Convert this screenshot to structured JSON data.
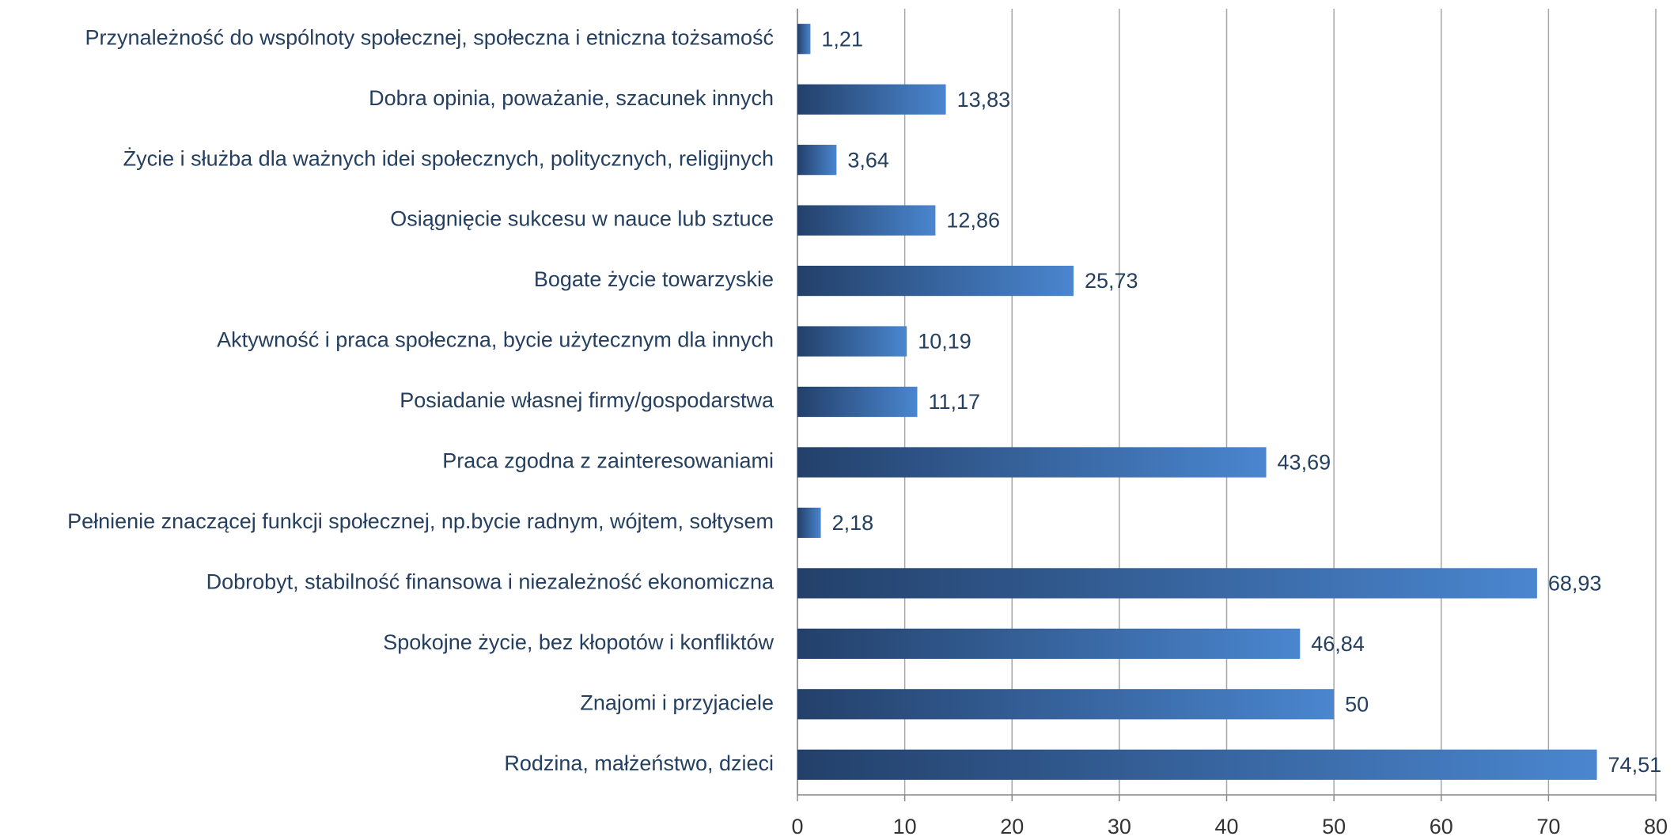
{
  "chart_data": {
    "type": "bar",
    "orientation": "horizontal",
    "categories": [
      "Przynależność do wspólnoty społecznej, społeczna i etniczna tożsamość",
      "Dobra opinia, poważanie, szacunek innych",
      "Życie i służba dla ważnych idei społecznych, politycznych, religijnych",
      "Osiągnięcie sukcesu w nauce lub sztuce",
      "Bogate życie towarzyskie",
      "Aktywność i praca społeczna, bycie użytecznym dla innych",
      "Posiadanie własnej firmy/gospodarstwa",
      "Praca zgodna z zainteresowaniami",
      "Pełnienie znaczącej funkcji społecznej, np.bycie radnym, wójtem, sołtysem",
      "Dobrobyt, stabilność finansowa i niezależność ekonomiczna",
      "Spokojne życie, bez kłopotów i konfliktów",
      "Znajomi i przyjaciele",
      "Rodzina, małżeństwo, dzieci"
    ],
    "values": [
      1.21,
      13.83,
      3.64,
      12.86,
      25.73,
      10.19,
      11.17,
      43.69,
      2.18,
      68.93,
      46.84,
      50,
      74.51
    ],
    "value_labels": [
      "1,21",
      "13,83",
      "3,64",
      "12,86",
      "25,73",
      "10,19",
      "11,17",
      "43,69",
      "2,18",
      "68,93",
      "46,84",
      "50",
      "74,51"
    ],
    "color": "#4a86cf",
    "xlim": [
      0,
      80
    ],
    "xticks": [
      0,
      10,
      20,
      30,
      40,
      50,
      60,
      70,
      80
    ],
    "grid": true
  }
}
